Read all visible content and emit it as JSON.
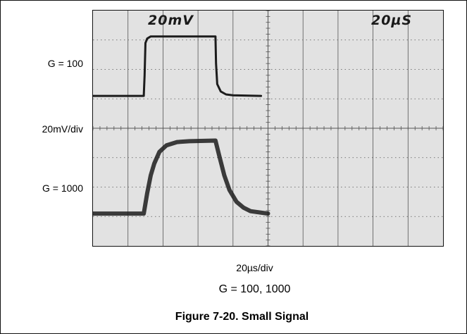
{
  "figure": {
    "title": "Figure 7-20. Small Signal",
    "subtitle": "G = 100, 1000",
    "time_div": "20µs/div"
  },
  "labels": {
    "g100": "G = 100",
    "vdiv": "20mV/div",
    "g1000": "G = 1000"
  },
  "scope": {
    "volts_label": "20mV",
    "time_label": "20µS",
    "background_color": "#e2e2e2",
    "trace_color": "#1c1c1c",
    "grid_color": "#555555"
  },
  "chart_data": {
    "type": "line",
    "title": "Figure 7-20. Small Signal",
    "xlabel": "20µs/div",
    "ylabel": "20mV/div",
    "grid": true,
    "divisions": {
      "x": 10,
      "y": 8
    },
    "xlim": [
      0,
      200
    ],
    "ylim": [
      -4,
      4
    ],
    "series": [
      {
        "name": "G = 100",
        "x": [
          0,
          29,
          29.5,
          30,
          31,
          33,
          70,
          70.3,
          71,
          73,
          76,
          80,
          96
        ],
        "y": [
          1.1,
          1.1,
          1.8,
          2.9,
          3.05,
          3.12,
          3.12,
          2.2,
          1.5,
          1.25,
          1.15,
          1.12,
          1.1
        ]
      },
      {
        "name": "G = 1000",
        "x": [
          0,
          29,
          31,
          33,
          35,
          38,
          42,
          48,
          55,
          70,
          72,
          75,
          78,
          82,
          86,
          90,
          100
        ],
        "y": [
          -2.9,
          -2.9,
          -2.2,
          -1.6,
          -1.2,
          -0.8,
          -0.58,
          -0.47,
          -0.44,
          -0.42,
          -0.9,
          -1.6,
          -2.1,
          -2.5,
          -2.7,
          -2.82,
          -2.9
        ]
      }
    ]
  }
}
